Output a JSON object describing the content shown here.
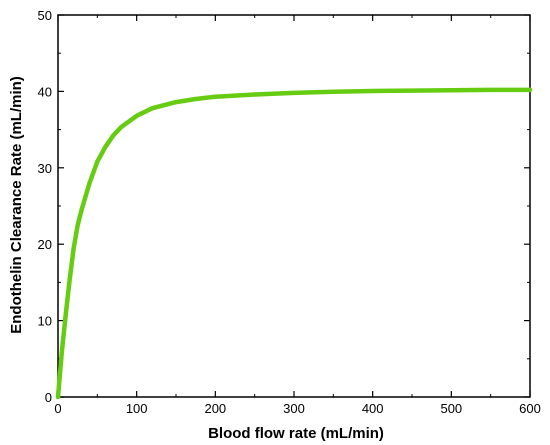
{
  "chart_data": {
    "type": "line",
    "title": "",
    "xlabel": "Blood flow rate (mL/min)",
    "ylabel": "Endothelin Clearance Rate (mL/min)",
    "xlim": [
      0,
      600
    ],
    "ylim": [
      0,
      50
    ],
    "xticks": [
      0,
      100,
      200,
      300,
      400,
      500,
      600
    ],
    "yticks": [
      0,
      10,
      20,
      30,
      40,
      50
    ],
    "grid": false,
    "legend": "none",
    "series": [
      {
        "color": "#66cc11",
        "x": [
          0,
          2,
          5,
          10,
          15,
          20,
          25,
          30,
          40,
          50,
          60,
          70,
          80,
          100,
          120,
          150,
          175,
          200,
          250,
          300,
          350,
          400,
          450,
          500,
          550,
          600
        ],
        "y": [
          0,
          2.5,
          6,
          11,
          15.5,
          19.5,
          22.5,
          24.5,
          28,
          30.8,
          32.7,
          34.2,
          35.3,
          36.8,
          37.8,
          38.6,
          39,
          39.3,
          39.6,
          39.8,
          39.95,
          40.05,
          40.1,
          40.15,
          40.2,
          40.2
        ]
      }
    ]
  }
}
